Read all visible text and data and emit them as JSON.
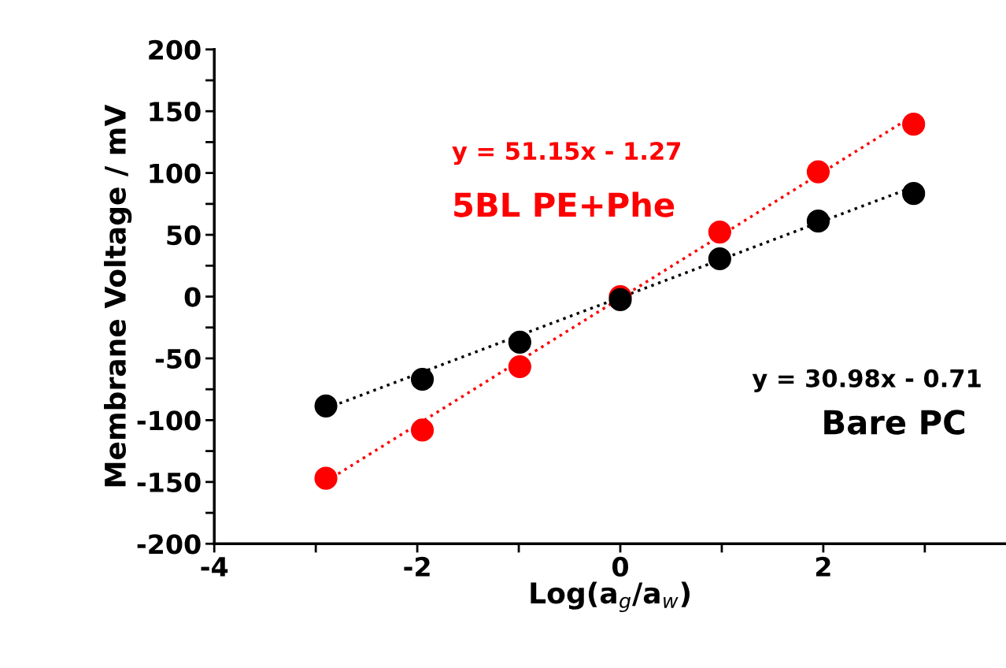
{
  "chart_data": {
    "type": "scatter",
    "xlabel": "Log(a$_{g}$/a$_{w}$)",
    "ylabel": "Membrane Voltage / mV",
    "xlim": [
      -4,
      3.8
    ],
    "xticks": [
      -4,
      {
        "value": -3,
        "label": null
      },
      -2,
      {
        "value": -1,
        "label": null
      },
      0,
      {
        "value": 1,
        "label": null
      },
      2,
      {
        "value": 3,
        "label": null
      }
    ],
    "ylim": [
      -200,
      200
    ],
    "yticks": [
      -200,
      {
        "value": -175,
        "label": null
      },
      -150,
      {
        "value": -125,
        "label": null
      },
      -100,
      {
        "value": -75,
        "label": null
      },
      -50,
      {
        "value": -25,
        "label": null
      },
      0,
      {
        "value": 25,
        "label": null
      },
      50,
      {
        "value": 75,
        "label": null
      },
      100,
      {
        "value": 125,
        "label": null
      },
      150,
      {
        "value": 175,
        "label": null
      },
      200
    ],
    "grid": false,
    "legend": false,
    "marker": "circle",
    "series": [
      {
        "name": "Bare PC",
        "color": "#000000",
        "x": [
          -2.9,
          -1.95,
          -0.99,
          0,
          0.98,
          1.95,
          2.89
        ],
        "values": [
          -88.5,
          -66.9,
          -36.9,
          -2.5,
          30.6,
          61.1,
          83.4
        ]
      },
      {
        "name": "5BL PE+Phe",
        "color": "#ff0000",
        "x": [
          -2.9,
          -1.95,
          -0.99,
          0,
          0.98,
          1.95,
          2.89
        ],
        "values": [
          -147,
          -108,
          -56.7,
          0,
          52.2,
          101,
          139.5
        ]
      },
      {
        "type": "line",
        "color": "#000000",
        "line_style": "dotted",
        "marker": "none",
        "x": [
          -2.9,
          2.89
        ],
        "values": [
          -90.5,
          88.8
        ]
      },
      {
        "type": "line",
        "color": "#ff0000",
        "line_style": "dotted",
        "marker": "none",
        "x": [
          -2.9,
          2.89
        ],
        "values": [
          -149.6,
          146.6
        ]
      }
    ],
    "annotations": [
      "y = 51.15x - 1.27",
      "y = 30.98x - 0.71"
    ]
  }
}
